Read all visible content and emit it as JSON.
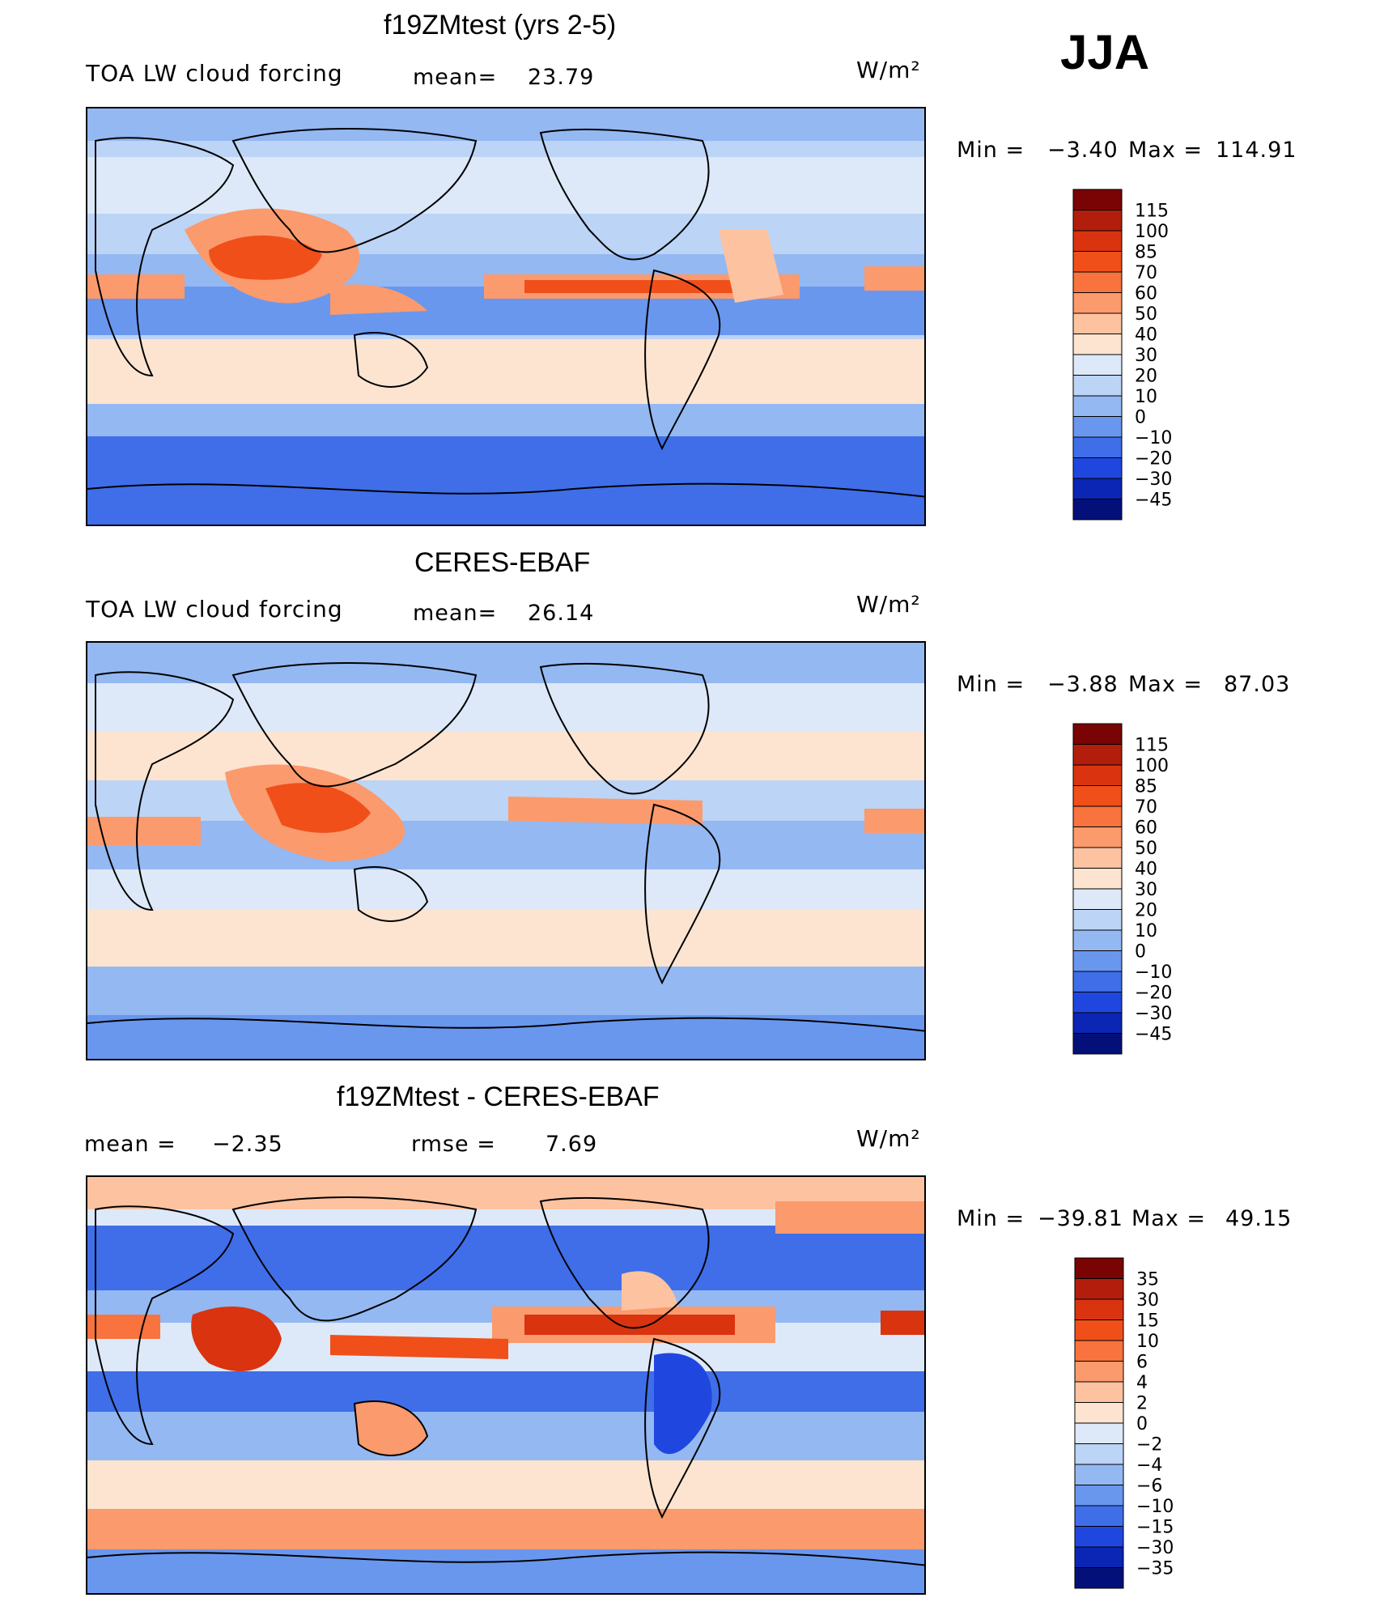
{
  "season": "JJA",
  "panels": [
    {
      "title": "f19ZMtest (yrs 2-5)",
      "left_label": "TOA LW cloud forcing",
      "center_label": "mean=",
      "center_value": "23.79",
      "units": "W/m²",
      "min_label": "Min =",
      "min_value": "−3.40",
      "max_label": "Max =",
      "max_value": "114.91"
    },
    {
      "title": "CERES-EBAF",
      "left_label": "TOA LW cloud forcing",
      "center_label": "mean=",
      "center_value": "26.14",
      "units": "W/m²",
      "min_label": "Min =",
      "min_value": "−3.88",
      "max_label": "Max =",
      "max_value": "87.03"
    },
    {
      "title": "f19ZMtest - CERES-EBAF",
      "left_label": "mean =",
      "left_value": "−2.35",
      "center_label": "rmse =",
      "center_value": "7.69",
      "units": "W/m²",
      "min_label": "Min =",
      "min_value": "−39.81",
      "max_label": "Max =",
      "max_value": "49.15"
    }
  ],
  "chart_data": [
    {
      "type": "heatmap",
      "title": "f19ZMtest (yrs 2-5)",
      "variable": "TOA LW cloud forcing",
      "units": "W/m²",
      "mean": 23.79,
      "min": -3.4,
      "max": 114.91,
      "colorbar_levels": [
        "115",
        "100",
        "85",
        "70",
        "60",
        "50",
        "40",
        "30",
        "20",
        "10",
        "0",
        "−10",
        "−20",
        "−30",
        "−45"
      ],
      "colorbar_colors": [
        "#7a0403",
        "#b31e0c",
        "#d9340f",
        "#f04f1a",
        "#f8733d",
        "#fb9a6c",
        "#fdc3a0",
        "#fde4d0",
        "#dde9f8",
        "#bcd4f5",
        "#94b8f2",
        "#6a97ee",
        "#3f6ee8",
        "#1f47df",
        "#0b25b5",
        "#041079"
      ]
    },
    {
      "type": "heatmap",
      "title": "CERES-EBAF",
      "variable": "TOA LW cloud forcing",
      "units": "W/m²",
      "mean": 26.14,
      "min": -3.88,
      "max": 87.03,
      "colorbar_levels": [
        "115",
        "100",
        "85",
        "70",
        "60",
        "50",
        "40",
        "30",
        "20",
        "10",
        "0",
        "−10",
        "−20",
        "−30",
        "−45"
      ],
      "colorbar_colors": [
        "#7a0403",
        "#b31e0c",
        "#d9340f",
        "#f04f1a",
        "#f8733d",
        "#fb9a6c",
        "#fdc3a0",
        "#fde4d0",
        "#dde9f8",
        "#bcd4f5",
        "#94b8f2",
        "#6a97ee",
        "#3f6ee8",
        "#1f47df",
        "#0b25b5",
        "#041079"
      ]
    },
    {
      "type": "heatmap",
      "title": "f19ZMtest - CERES-EBAF",
      "units": "W/m²",
      "mean": -2.35,
      "rmse": 7.69,
      "min": -39.81,
      "max": 49.15,
      "colorbar_levels": [
        "35",
        "30",
        "15",
        "10",
        "6",
        "4",
        "2",
        "0",
        "−2",
        "−4",
        "−6",
        "−10",
        "−15",
        "−30",
        "−35"
      ],
      "colorbar_colors": [
        "#7a0403",
        "#b31e0c",
        "#d9340f",
        "#f04f1a",
        "#f8733d",
        "#fb9a6c",
        "#fdc3a0",
        "#fde4d0",
        "#dde9f8",
        "#bcd4f5",
        "#94b8f2",
        "#6a97ee",
        "#3f6ee8",
        "#1f47df",
        "#0b25b5",
        "#041079"
      ]
    }
  ]
}
